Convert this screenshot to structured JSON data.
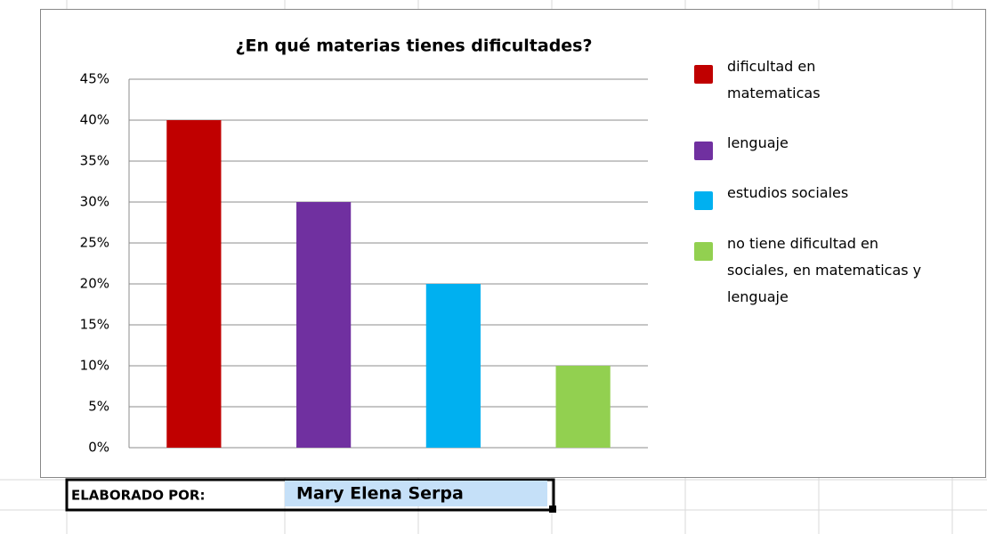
{
  "chart_data": {
    "type": "bar",
    "title": "¿En qué materias tienes dificultades?",
    "categories": [
      null
    ],
    "series": [
      {
        "name": "dificultad en matematicas",
        "color": "#c00000",
        "values": [
          40
        ]
      },
      {
        "name": "lenguaje",
        "color": "#7030a0",
        "values": [
          30
        ]
      },
      {
        "name": "estudios sociales",
        "color": "#00b0f0",
        "values": [
          20
        ]
      },
      {
        "name": "no tiene dificultad en sociales, en matematicas y lenguaje",
        "color": "#92d050",
        "values": [
          10
        ]
      }
    ],
    "ylim": [
      0,
      45
    ],
    "yticks": [
      {
        "value": 0,
        "label": "0%"
      },
      {
        "value": 5,
        "label": "5%"
      },
      {
        "value": 10,
        "label": "10%"
      },
      {
        "value": 15,
        "label": "15%"
      },
      {
        "value": 20,
        "label": "20%"
      },
      {
        "value": 25,
        "label": "25%"
      },
      {
        "value": 30,
        "label": "30%"
      },
      {
        "value": 35,
        "label": "35%"
      },
      {
        "value": 40,
        "label": "40%"
      },
      {
        "value": 45,
        "label": "45%"
      }
    ],
    "grid": true,
    "legend": "right"
  },
  "footer": {
    "label": "ELABORADO POR:",
    "name": "Mary Elena Serpa"
  }
}
